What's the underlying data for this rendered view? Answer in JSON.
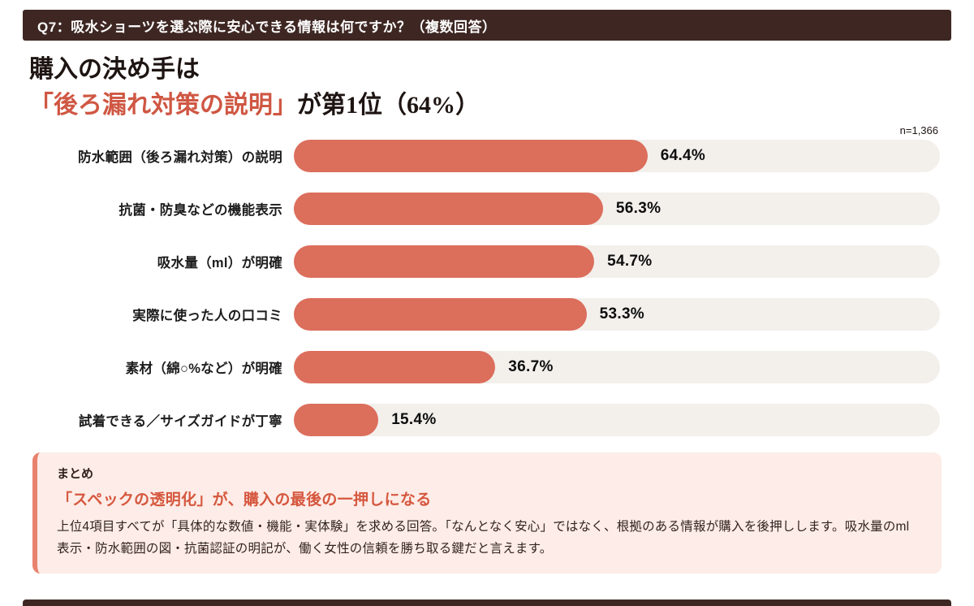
{
  "header": {
    "question": "Q7：吸水ショーツを選ぶ際に安心できる情報は何ですか？（複数回答）"
  },
  "title": {
    "line1": "購入の決め手は",
    "highlight": "「後ろ漏れ対策の説明」",
    "rest": "が第1位（64%）"
  },
  "sample_size": "n=1,366",
  "chart_data": {
    "type": "bar",
    "orientation": "horizontal",
    "title": "購入の決め手は「後ろ漏れ対策の説明」が第1位（64%）",
    "sample": "n=1,366",
    "categories": [
      "防水範囲（後ろ漏れ対策）の説明",
      "抗菌・防臭などの機能表示",
      "吸水量（ml）が明確",
      "実際に使った人の口コミ",
      "素材（綿○%など）が明確",
      "試着できる／サイズガイドが丁寧"
    ],
    "values": [
      64.4,
      56.3,
      54.7,
      53.3,
      36.7,
      15.4
    ],
    "value_labels": [
      "64.4%",
      "56.3%",
      "54.7%",
      "53.3%",
      "36.7%",
      "15.4%"
    ],
    "xlim": [
      0,
      100
    ],
    "grid": false,
    "legend": false,
    "bar_color": "#dc6e5c",
    "track_color": "#f3f0ec"
  },
  "summary": {
    "label": "まとめ",
    "heading": "「スペックの透明化」が、購入の最後の一押しになる",
    "body": "上位4項目すべてが「具体的な数値・機能・実体験」を求める回答。「なんとなく安心」ではなく、根拠のある情報が購入を後押しします。吸水量のml表示・防水範囲の図・抗菌認証の明記が、働く女性の信頼を勝ち取る鍵だと言えます。"
  },
  "colors": {
    "header_bg": "#3e2723",
    "accent_bar": "#dc6e5c",
    "highlight_text": "#cf5743",
    "summary_bg": "#fdece7",
    "summary_border": "#e8826d",
    "summary_heading": "#d5573e",
    "track": "#f3f0ec",
    "footer_bg": "#3e2723"
  }
}
